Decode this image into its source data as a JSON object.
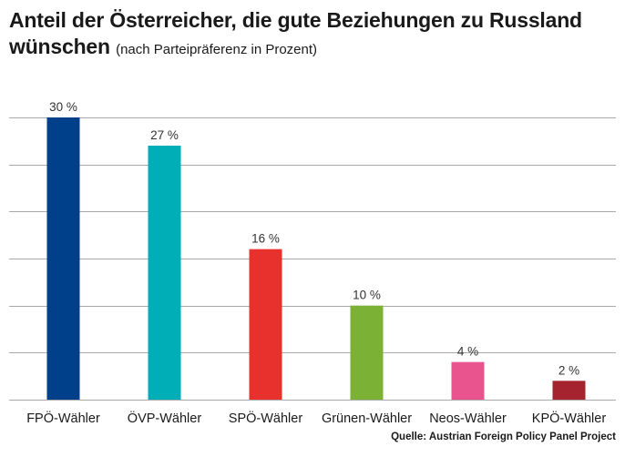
{
  "title": "Anteil der Österreicher, die gute Beziehungen zu Russland wünschen",
  "subtitle": "(nach Parteipräferenz in Prozent)",
  "source": "Quelle: Austrian Foreign Policy Panel Project",
  "chart_data": {
    "type": "bar",
    "title": "Anteil der Österreicher, die gute Beziehungen zu Russland wünschen",
    "subtitle": "(nach Parteipräferenz in Prozent)",
    "categories": [
      "FPÖ-Wähler",
      "ÖVP-Wähler",
      "SPÖ-Wähler",
      "Grünen-Wähler",
      "Neos-Wähler",
      "KPÖ-Wähler"
    ],
    "values": [
      30,
      27,
      16,
      10,
      4,
      2
    ],
    "value_labels": [
      "30 %",
      "27 %",
      "16 %",
      "10 %",
      "4 %",
      "2 %"
    ],
    "colors": [
      "#003f8a",
      "#00aeb8",
      "#e8302c",
      "#7bb135",
      "#e9538e",
      "#a5232f"
    ],
    "xlabel": "",
    "ylabel": "",
    "ylim": [
      0,
      30
    ],
    "gridlines": [
      0,
      5,
      10,
      15,
      20,
      25,
      30
    ],
    "grid": true,
    "grid_color": "#a9a9a9"
  }
}
